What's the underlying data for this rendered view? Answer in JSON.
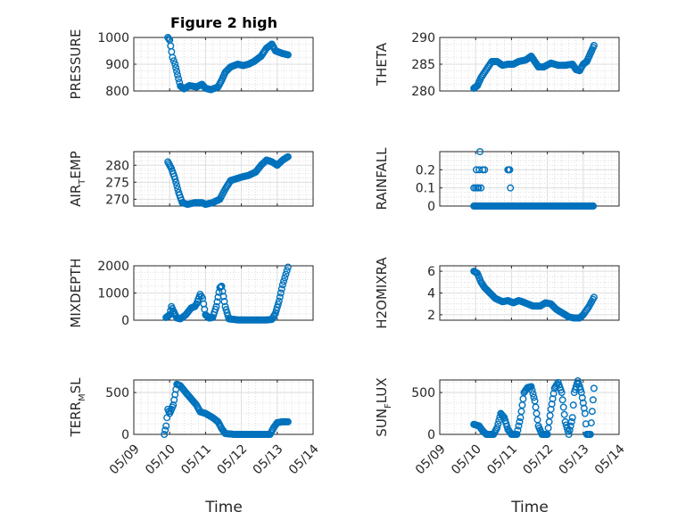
{
  "figure": {
    "title": "Figure 2 high",
    "marker_color": "#0072BD",
    "x_tick_labels": [
      "05/09",
      "05/10",
      "05/11",
      "05/12",
      "05/13",
      "05/14"
    ],
    "x_axis_label": "Time"
  },
  "chart_data": [
    {
      "type": "scatter",
      "id": "pressure",
      "ylabel": "PRESSURE",
      "ylim": [
        800,
        1000
      ],
      "yticks": [
        "800",
        "900",
        "1000"
      ],
      "ytick_values": [
        800,
        900,
        1000
      ],
      "xlim": [
        0,
        5
      ],
      "x_ticks": [
        0,
        1,
        2,
        3,
        4,
        5
      ],
      "grid": true,
      "knots": [
        [
          0.95,
          1000
        ],
        [
          1.0,
          990
        ],
        [
          1.08,
          925
        ],
        [
          1.15,
          900
        ],
        [
          1.22,
          860
        ],
        [
          1.3,
          818
        ],
        [
          1.4,
          808
        ],
        [
          1.55,
          820
        ],
        [
          1.75,
          815
        ],
        [
          1.9,
          825
        ],
        [
          2.0,
          810
        ],
        [
          2.15,
          805
        ],
        [
          2.35,
          815
        ],
        [
          2.45,
          840
        ],
        [
          2.55,
          870
        ],
        [
          2.7,
          890
        ],
        [
          2.9,
          900
        ],
        [
          3.05,
          895
        ],
        [
          3.2,
          900
        ],
        [
          3.35,
          910
        ],
        [
          3.55,
          930
        ],
        [
          3.7,
          960
        ],
        [
          3.85,
          975
        ],
        [
          3.95,
          950
        ],
        [
          4.05,
          945
        ],
        [
          4.15,
          940
        ],
        [
          4.3,
          935
        ]
      ]
    },
    {
      "type": "scatter",
      "id": "theta",
      "ylabel": "THETA",
      "ylim": [
        280,
        290
      ],
      "yticks": [
        "280",
        "285",
        "290"
      ],
      "ytick_values": [
        280,
        285,
        290
      ],
      "xlim": [
        0,
        5
      ],
      "x_ticks": [
        0,
        1,
        2,
        3,
        4,
        5
      ],
      "grid": true,
      "knots": [
        [
          0.95,
          280.5
        ],
        [
          1.05,
          281
        ],
        [
          1.15,
          282.5
        ],
        [
          1.3,
          284
        ],
        [
          1.45,
          285.5
        ],
        [
          1.6,
          285.5
        ],
        [
          1.75,
          284.8
        ],
        [
          1.9,
          285
        ],
        [
          2.05,
          285
        ],
        [
          2.2,
          285.5
        ],
        [
          2.4,
          285.8
        ],
        [
          2.55,
          286.5
        ],
        [
          2.65,
          285.5
        ],
        [
          2.75,
          284.5
        ],
        [
          2.9,
          284.5
        ],
        [
          3.1,
          285.2
        ],
        [
          3.3,
          284.8
        ],
        [
          3.5,
          284.8
        ],
        [
          3.7,
          285
        ],
        [
          3.8,
          284
        ],
        [
          3.9,
          283.8
        ],
        [
          4.0,
          285
        ],
        [
          4.1,
          285.5
        ],
        [
          4.2,
          287
        ],
        [
          4.3,
          288.5
        ]
      ]
    },
    {
      "type": "scatter",
      "id": "air_temp",
      "ylabel": "AIR",
      "ylabel_sub": "T",
      "ylabel_rest": "EMP",
      "ylim": [
        268,
        284
      ],
      "yticks": [
        "270",
        "275",
        "280"
      ],
      "ytick_values": [
        270,
        275,
        280
      ],
      "xlim": [
        0,
        5
      ],
      "x_ticks": [
        0,
        1,
        2,
        3,
        4,
        5
      ],
      "grid": true,
      "knots": [
        [
          0.95,
          281
        ],
        [
          1.05,
          279
        ],
        [
          1.15,
          276
        ],
        [
          1.25,
          272
        ],
        [
          1.35,
          269
        ],
        [
          1.5,
          268.5
        ],
        [
          1.7,
          269
        ],
        [
          1.9,
          269
        ],
        [
          2.0,
          268.5
        ],
        [
          2.2,
          269
        ],
        [
          2.4,
          270
        ],
        [
          2.55,
          273
        ],
        [
          2.7,
          275.5
        ],
        [
          2.85,
          276
        ],
        [
          3.0,
          276.5
        ],
        [
          3.2,
          277
        ],
        [
          3.4,
          278
        ],
        [
          3.55,
          280
        ],
        [
          3.7,
          281.5
        ],
        [
          3.85,
          281
        ],
        [
          4.0,
          280
        ],
        [
          4.15,
          281.5
        ],
        [
          4.3,
          282.5
        ]
      ]
    },
    {
      "type": "scatter",
      "id": "rainfall",
      "ylabel": "RAINFALL",
      "ylim": [
        0,
        0.3
      ],
      "yticks": [
        "0",
        "0.1",
        "0.2"
      ],
      "ytick_values": [
        0,
        0.1,
        0.2
      ],
      "xlim": [
        0,
        5
      ],
      "x_ticks": [
        0,
        1,
        2,
        3,
        4,
        5
      ],
      "grid": true,
      "baseline_range": [
        0.95,
        4.3
      ],
      "spikes": [
        [
          0.95,
          0.1
        ],
        [
          1.0,
          0.1
        ],
        [
          1.02,
          0.2
        ],
        [
          1.05,
          0.1
        ],
        [
          1.08,
          0.1
        ],
        [
          1.1,
          0.2
        ],
        [
          1.12,
          0.3
        ],
        [
          1.15,
          0.1
        ],
        [
          1.2,
          0.2
        ],
        [
          1.25,
          0.2
        ],
        [
          1.9,
          0.2
        ],
        [
          1.92,
          0.2
        ],
        [
          1.95,
          0.2
        ],
        [
          1.97,
          0.1
        ]
      ]
    },
    {
      "type": "scatter",
      "id": "mixdepth",
      "ylabel": "MIXDEPTH",
      "ylim": [
        0,
        2000
      ],
      "yticks": [
        "0",
        "1000",
        "2000"
      ],
      "ytick_values": [
        0,
        1000,
        2000
      ],
      "xlim": [
        0,
        5
      ],
      "x_ticks": [
        0,
        1,
        2,
        3,
        4,
        5
      ],
      "grid": true,
      "knots": [
        [
          0.9,
          100
        ],
        [
          1.0,
          200
        ],
        [
          1.05,
          500
        ],
        [
          1.1,
          350
        ],
        [
          1.2,
          80
        ],
        [
          1.3,
          50
        ],
        [
          1.45,
          200
        ],
        [
          1.6,
          450
        ],
        [
          1.7,
          500
        ],
        [
          1.75,
          600
        ],
        [
          1.85,
          950
        ],
        [
          1.92,
          800
        ],
        [
          2.0,
          200
        ],
        [
          2.1,
          80
        ],
        [
          2.2,
          100
        ],
        [
          2.3,
          500
        ],
        [
          2.4,
          1200
        ],
        [
          2.45,
          1250
        ],
        [
          2.55,
          500
        ],
        [
          2.65,
          50
        ],
        [
          2.9,
          10
        ],
        [
          3.3,
          10
        ],
        [
          3.7,
          10
        ],
        [
          3.85,
          30
        ],
        [
          3.95,
          250
        ],
        [
          4.05,
          700
        ],
        [
          4.15,
          1300
        ],
        [
          4.3,
          1950
        ]
      ]
    },
    {
      "type": "scatter",
      "id": "h2omixra",
      "ylabel": "H2OMIXRA",
      "ylim": [
        1.5,
        6.5
      ],
      "yticks": [
        "2",
        "4",
        "6"
      ],
      "ytick_values": [
        2,
        4,
        6
      ],
      "xlim": [
        0,
        5
      ],
      "x_ticks": [
        0,
        1,
        2,
        3,
        4,
        5
      ],
      "grid": true,
      "knots": [
        [
          0.95,
          6
        ],
        [
          1.05,
          5.8
        ],
        [
          1.15,
          5
        ],
        [
          1.25,
          4.5
        ],
        [
          1.4,
          4
        ],
        [
          1.55,
          3.5
        ],
        [
          1.75,
          3.2
        ],
        [
          1.9,
          3.3
        ],
        [
          2.05,
          3.1
        ],
        [
          2.2,
          3.3
        ],
        [
          2.3,
          3.2
        ],
        [
          2.45,
          3
        ],
        [
          2.6,
          2.8
        ],
        [
          2.8,
          2.8
        ],
        [
          2.95,
          3.1
        ],
        [
          3.1,
          3
        ],
        [
          3.25,
          2.5
        ],
        [
          3.4,
          2.2
        ],
        [
          3.6,
          1.8
        ],
        [
          3.75,
          1.7
        ],
        [
          3.9,
          1.7
        ],
        [
          4.0,
          2
        ],
        [
          4.15,
          2.7
        ],
        [
          4.3,
          3.6
        ]
      ]
    },
    {
      "type": "scatter",
      "id": "terr_msl",
      "ylabel": "TERR",
      "ylabel_sub": "M",
      "ylabel_rest": "SL",
      "ylim": [
        0,
        650
      ],
      "yticks": [
        "0",
        "500"
      ],
      "ytick_values": [
        0,
        500
      ],
      "xlim": [
        0,
        5
      ],
      "x_ticks": [
        0,
        1,
        2,
        3,
        4,
        5
      ],
      "grid": true,
      "knots": [
        [
          0.85,
          0
        ],
        [
          0.9,
          100
        ],
        [
          0.95,
          300
        ],
        [
          1.0,
          250
        ],
        [
          1.1,
          350
        ],
        [
          1.2,
          600
        ],
        [
          1.3,
          580
        ],
        [
          1.45,
          500
        ],
        [
          1.55,
          450
        ],
        [
          1.75,
          350
        ],
        [
          1.85,
          270
        ],
        [
          2.0,
          250
        ],
        [
          2.2,
          200
        ],
        [
          2.35,
          150
        ],
        [
          2.45,
          70
        ],
        [
          2.55,
          10
        ],
        [
          2.8,
          0
        ],
        [
          3.2,
          0
        ],
        [
          3.6,
          0
        ],
        [
          3.8,
          0
        ],
        [
          3.9,
          80
        ],
        [
          4.0,
          140
        ],
        [
          4.15,
          150
        ],
        [
          4.3,
          150
        ]
      ]
    },
    {
      "type": "scatter",
      "id": "sun_flux",
      "ylabel": "SUN",
      "ylabel_sub": "F",
      "ylabel_rest": "LUX",
      "ylim": [
        0,
        650
      ],
      "yticks": [
        "0",
        "500"
      ],
      "ytick_values": [
        0,
        500
      ],
      "xlim": [
        0,
        5
      ],
      "x_ticks": [
        0,
        1,
        2,
        3,
        4,
        5
      ],
      "grid": true,
      "knots": [
        [
          0.95,
          120
        ],
        [
          1.1,
          100
        ],
        [
          1.2,
          40
        ],
        [
          1.3,
          0
        ],
        [
          1.5,
          0
        ],
        [
          1.6,
          80
        ],
        [
          1.7,
          250
        ],
        [
          1.8,
          200
        ],
        [
          1.9,
          60
        ],
        [
          2.0,
          0
        ],
        [
          2.15,
          0
        ],
        [
          2.25,
          200
        ],
        [
          2.35,
          500
        ],
        [
          2.45,
          560
        ],
        [
          2.55,
          570
        ],
        [
          2.65,
          400
        ],
        [
          2.75,
          100
        ],
        [
          2.85,
          0
        ],
        [
          3.0,
          0
        ],
        [
          3.1,
          300
        ],
        [
          3.2,
          550
        ],
        [
          3.3,
          620
        ],
        [
          3.4,
          500
        ],
        [
          3.5,
          150
        ],
        [
          3.6,
          0
        ],
        [
          3.7,
          200
        ],
        [
          3.75,
          500
        ],
        [
          3.85,
          640
        ],
        [
          3.95,
          500
        ],
        [
          4.05,
          250
        ],
        [
          4.1,
          0
        ],
        [
          4.2,
          0
        ],
        [
          4.3,
          550
        ]
      ]
    }
  ]
}
